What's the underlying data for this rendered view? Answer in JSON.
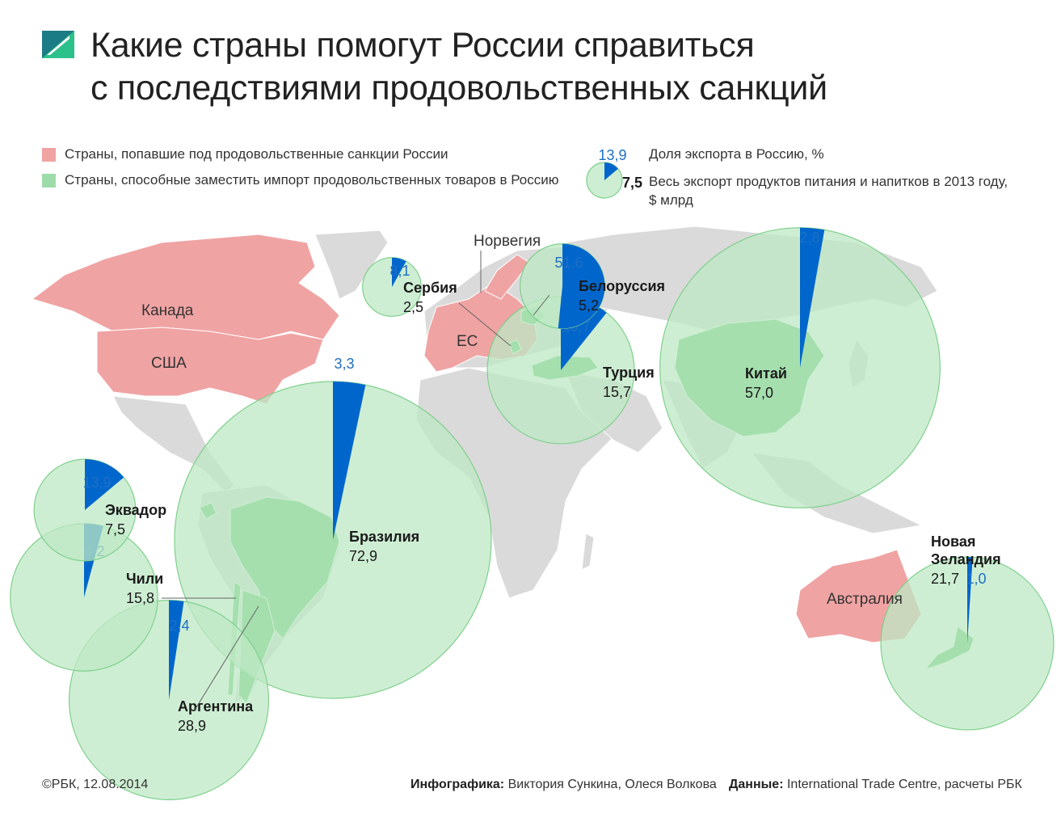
{
  "header": {
    "title_line1": "Какие страны помогут России справиться",
    "title_line2": "с последствиями продовольственных санкций"
  },
  "colors": {
    "sanctioned": "#f0a3a3",
    "substitute": "#5cc46e",
    "bubble_fill": "#bde8c4",
    "bubble_stroke": "#7fd08d",
    "share_slice": "#0066cc",
    "land": "#dadada",
    "label_blue": "#1f6fc4"
  },
  "legend": {
    "sanctioned_label": "Страны, попавшие под продовольственные санкции России",
    "substitute_label": "Страны, способные заместить импорт продовольственных товаров в Россию",
    "sample_share": "13,9",
    "sample_total": "7,5",
    "share_label": "Доля экспорта в Россию, %",
    "total_label_line1": "Весь экспорт продуктов питания и напитков в 2013 году,",
    "total_label_line2": "$ млрд"
  },
  "region_labels": {
    "canada": "Канада",
    "usa": "США",
    "eu": "ЕС",
    "norway": "Норвегия",
    "australia": "Австралия"
  },
  "chart_data": {
    "type": "pie",
    "value_units": "Доля экспорта в Россию, %",
    "size_units": "Весь экспорт продуктов питания и напитков в 2013 году, $ млрд",
    "countries": [
      {
        "name": "Бразилия",
        "share": "3,3",
        "total": "72,9",
        "share_value": 3.3,
        "total_value": 72.9
      },
      {
        "name": "Китай",
        "share": "2,8",
        "total": "57,0",
        "share_value": 2.8,
        "total_value": 57.0
      },
      {
        "name": "Аргентина",
        "share": "2,4",
        "total": "28,9",
        "share_value": 2.4,
        "total_value": 28.9
      },
      {
        "name": "Новая Зеландия",
        "share": "1,0",
        "total": "21,7",
        "share_value": 1.0,
        "total_value": 21.7
      },
      {
        "name": "Чили",
        "share": "4,2",
        "total": "15,8",
        "share_value": 4.2,
        "total_value": 15.8
      },
      {
        "name": "Турция",
        "share": "10,7",
        "total": "15,7",
        "share_value": 10.7,
        "total_value": 15.7
      },
      {
        "name": "Эквадор",
        "share": "13,9",
        "total": "7,5",
        "share_value": 13.9,
        "total_value": 7.5
      },
      {
        "name": "Белоруссия",
        "share": "51,6",
        "total": "5,2",
        "share_value": 51.6,
        "total_value": 5.2
      },
      {
        "name": "Сербия",
        "share": "8,1",
        "total": "2,5",
        "share_value": 8.1,
        "total_value": 2.5
      }
    ]
  },
  "footer": {
    "copyright": "©РБК, 12.08.2014",
    "credits_label": "Инфографика:",
    "credits_names": "Виктория Сункина, Олеся Волкова",
    "source_label": "Данные:",
    "source_text": "International Trade Centre, расчеты РБК"
  }
}
